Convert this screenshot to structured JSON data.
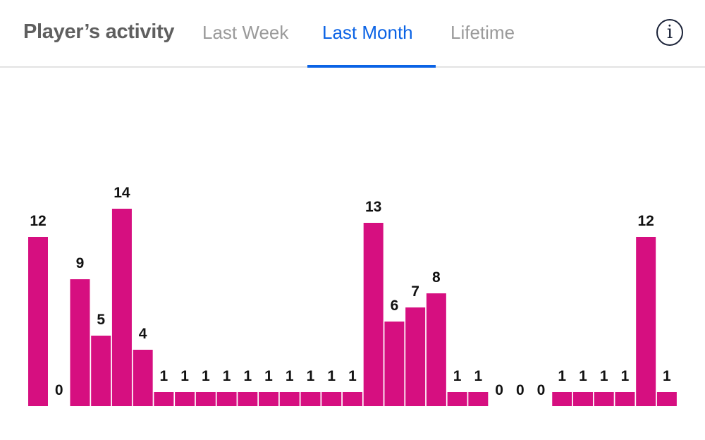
{
  "header": {
    "title": "Player’s activity",
    "tabs": [
      {
        "label": "Last Week",
        "active": false
      },
      {
        "label": "Last Month",
        "active": true
      },
      {
        "label": "Lifetime",
        "active": false
      }
    ],
    "info_icon": "info-circle-icon",
    "info_glyph": "i"
  },
  "colors": {
    "bar": "#d60f80",
    "active_tab": "#0b63e5",
    "label": "#111111"
  },
  "chart_data": {
    "type": "bar",
    "values": [
      12,
      0,
      9,
      5,
      14,
      4,
      1,
      1,
      1,
      1,
      1,
      1,
      1,
      1,
      1,
      1,
      13,
      6,
      7,
      8,
      1,
      1,
      0,
      0,
      0,
      1,
      1,
      1,
      1,
      12,
      1
    ],
    "data_labels": true,
    "grid": false,
    "axes_visible": false
  }
}
